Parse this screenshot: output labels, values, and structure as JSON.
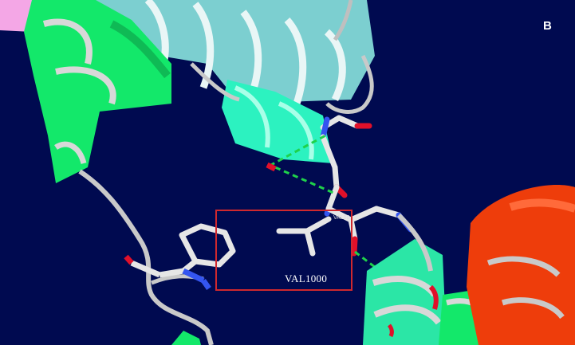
{
  "figure": {
    "panel_label": "B",
    "highlighted_residue": "VAL1000",
    "small_residue_label": "VAL10",
    "colors": {
      "background": "#000a50",
      "helix_green": "#13e86a",
      "helix_teal": "#2cf2c0",
      "helix_cyan": "#8fdada",
      "helix_red": "#ee3d0b",
      "helix_pink": "#f4a7e6",
      "backbone": "#c9c9c9",
      "carbon": "#e6e6e6",
      "nitrogen": "#3455f0",
      "oxygen": "#e0102a",
      "hbond": "#1fd24a",
      "highlight_box": "#d0282e"
    }
  }
}
